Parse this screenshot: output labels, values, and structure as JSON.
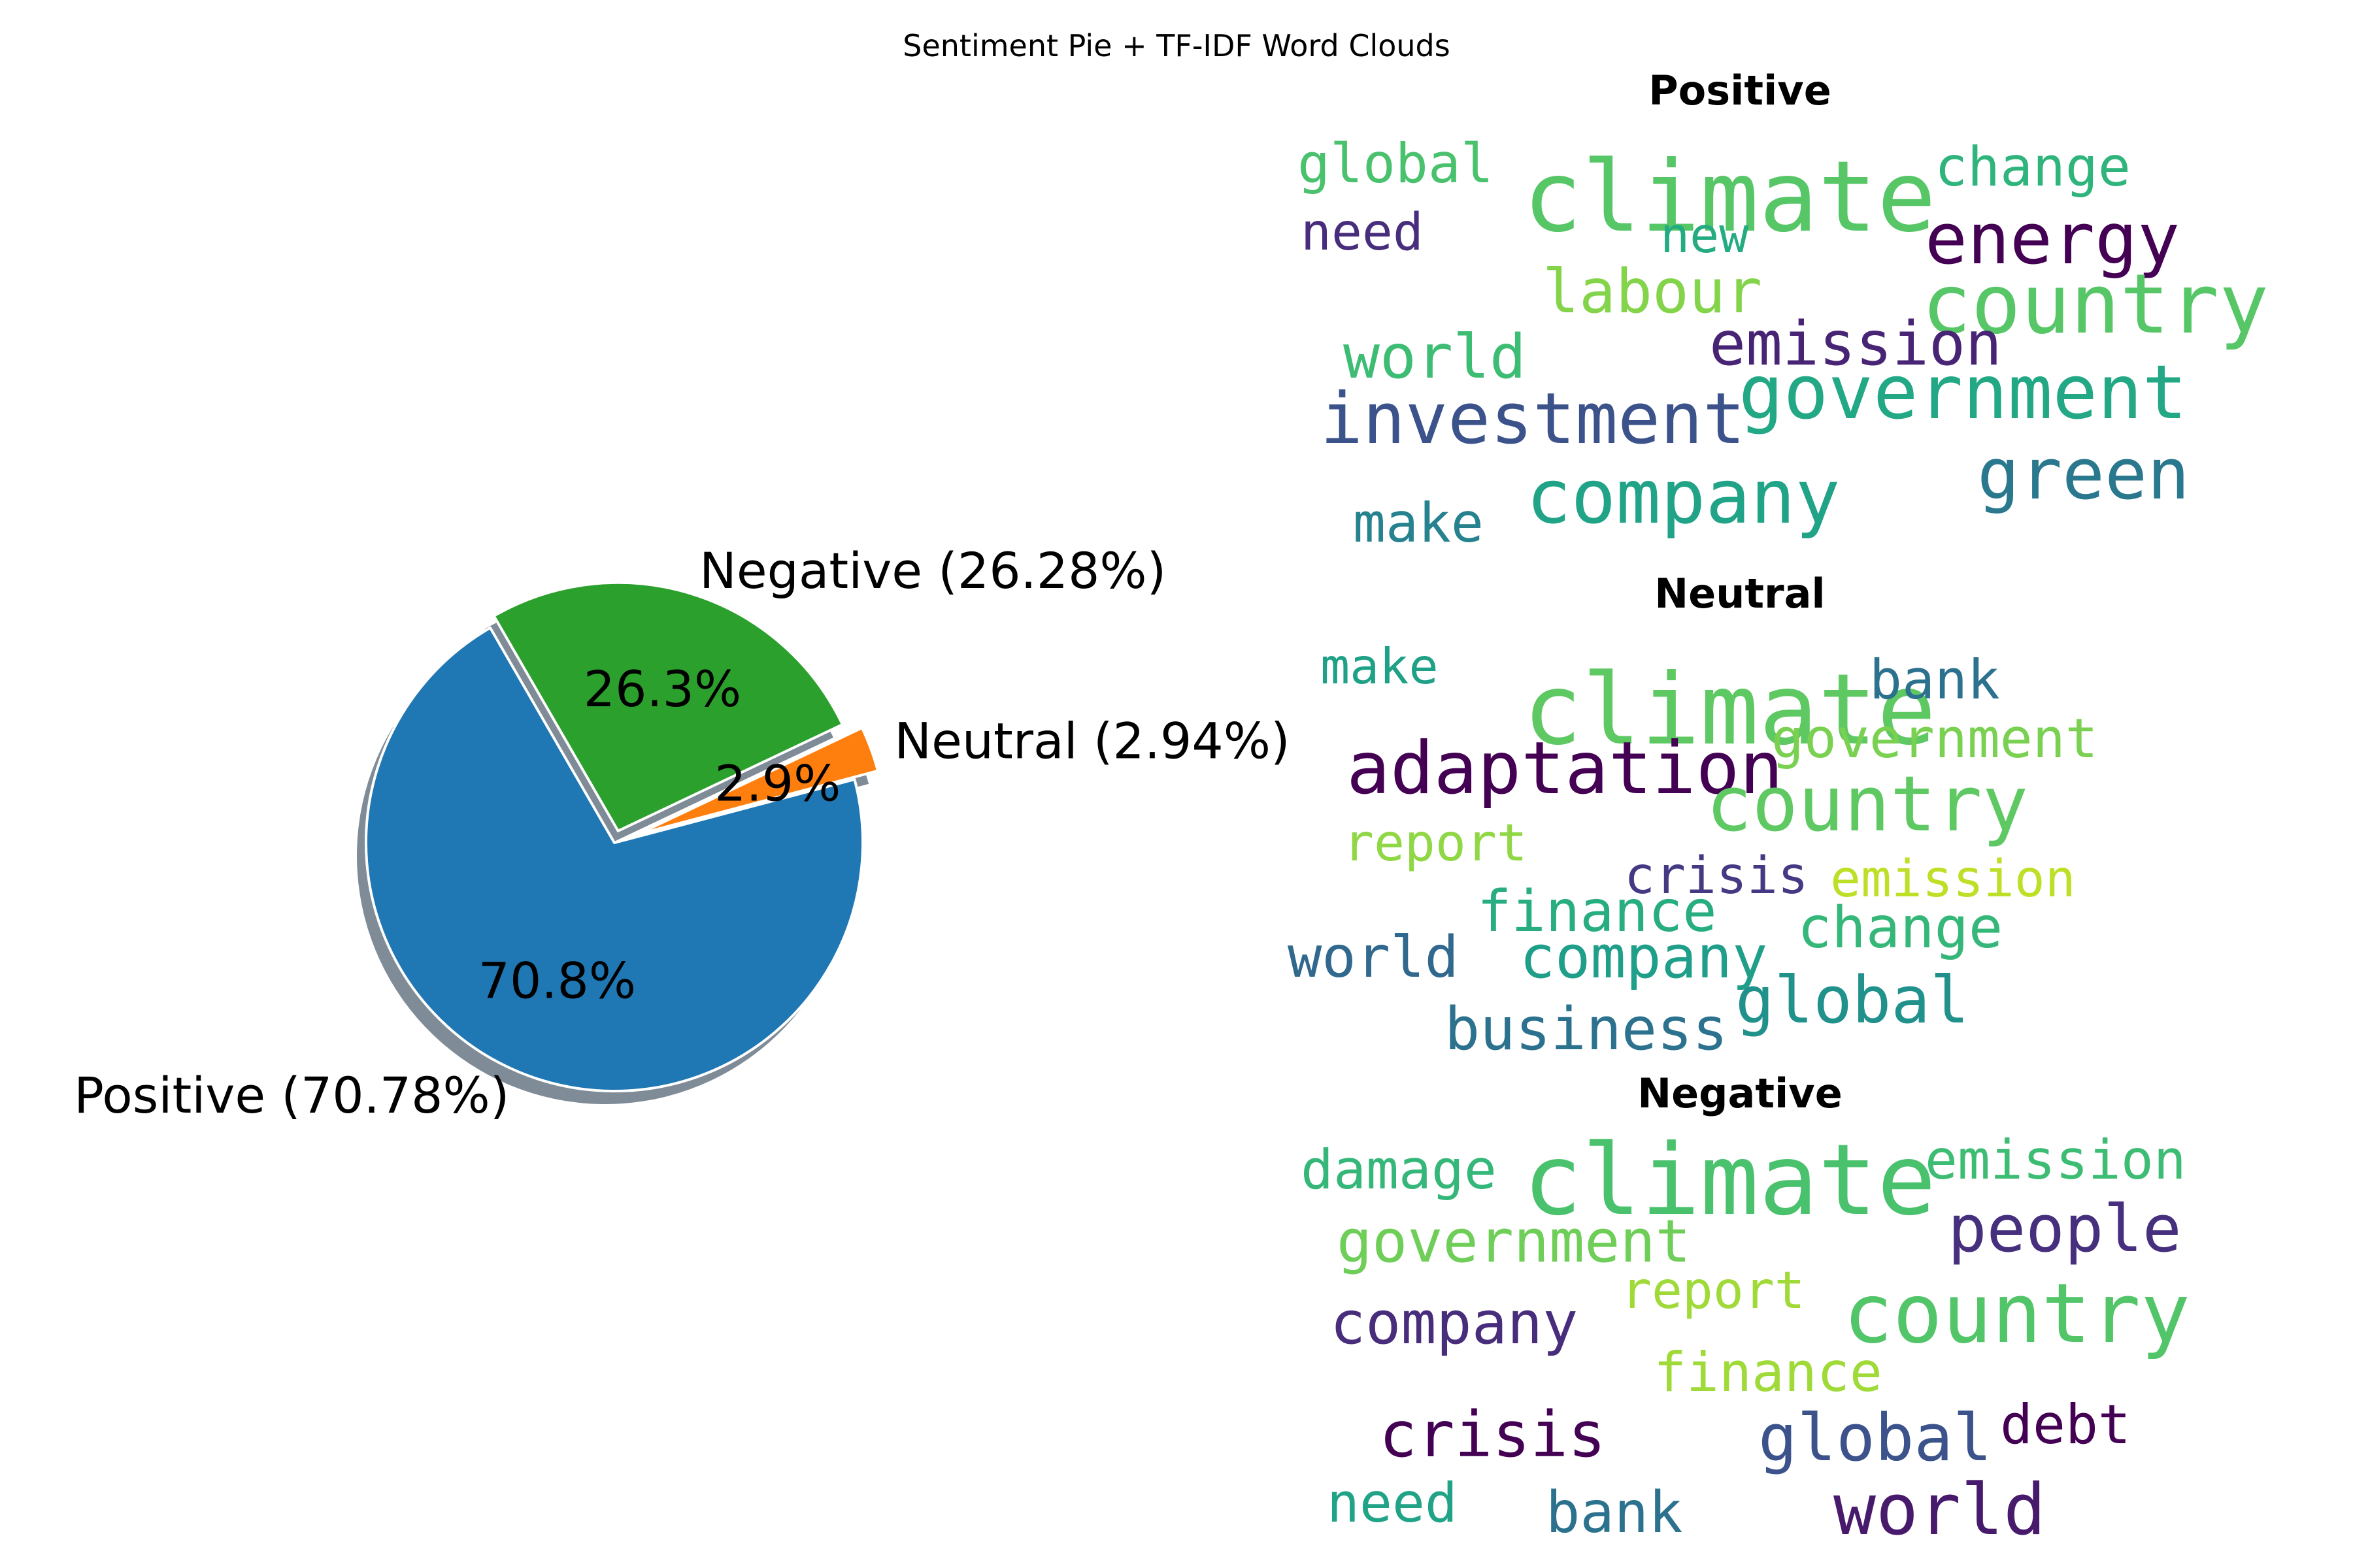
{
  "figure_title": "Sentiment Pie + TF-IDF Word Clouds",
  "chart_data": [
    {
      "type": "pie",
      "title": "",
      "slices": [
        {
          "label": "Positive",
          "value": 70.78,
          "legend_label": "Positive (70.78%)",
          "pct_label": "70.8%",
          "color": "#1f77b4",
          "explode": 0
        },
        {
          "label": "Neutral",
          "value": 2.94,
          "legend_label": "Neutral (2.94%)",
          "pct_label": "2.9%",
          "color": "#ff7f0e",
          "explode": 0.1
        },
        {
          "label": "Negative",
          "value": 26.28,
          "legend_label": "Negative (26.28%)",
          "pct_label": "26.3%",
          "color": "#2ca02c",
          "explode": 0.05
        }
      ],
      "start_angle_deg": 120,
      "direction": "counterclockwise",
      "shadow": true
    },
    {
      "type": "wordcloud",
      "title": "Positive",
      "words": [
        {
          "text": "global",
          "weight": 0.55,
          "color": "#4ac16d"
        },
        {
          "text": "climate",
          "weight": 1.0,
          "color": "#56c667"
        },
        {
          "text": "change",
          "weight": 0.55,
          "color": "#2fb47c"
        },
        {
          "text": "need",
          "weight": 0.52,
          "color": "#472d7b"
        },
        {
          "text": "new",
          "weight": 0.5,
          "color": "#25ab82"
        },
        {
          "text": "energy",
          "weight": 0.72,
          "color": "#440154"
        },
        {
          "text": "labour",
          "weight": 0.62,
          "color": "#84d44b"
        },
        {
          "text": "country",
          "weight": 0.84,
          "color": "#56c667"
        },
        {
          "text": "world",
          "weight": 0.62,
          "color": "#3dbc74"
        },
        {
          "text": "emission",
          "weight": 0.62,
          "color": "#482475"
        },
        {
          "text": "investment",
          "weight": 0.72,
          "color": "#3b528b"
        },
        {
          "text": "government",
          "weight": 0.76,
          "color": "#22a884"
        },
        {
          "text": "company",
          "weight": 0.76,
          "color": "#20a386"
        },
        {
          "text": "green",
          "weight": 0.72,
          "color": "#2a788e"
        },
        {
          "text": "make",
          "weight": 0.55,
          "color": "#26828e"
        }
      ]
    },
    {
      "type": "wordcloud",
      "title": "Neutral",
      "words": [
        {
          "text": "make",
          "weight": 0.5,
          "color": "#1fa187"
        },
        {
          "text": "climate",
          "weight": 1.0,
          "color": "#5ec962"
        },
        {
          "text": "bank",
          "weight": 0.55,
          "color": "#2c728e"
        },
        {
          "text": "government",
          "weight": 0.55,
          "color": "#7ad151"
        },
        {
          "text": "adaptation",
          "weight": 0.74,
          "color": "#440154"
        },
        {
          "text": "country",
          "weight": 0.78,
          "color": "#5ec962"
        },
        {
          "text": "report",
          "weight": 0.52,
          "color": "#8fd744"
        },
        {
          "text": "crisis",
          "weight": 0.52,
          "color": "#443983"
        },
        {
          "text": "emission",
          "weight": 0.52,
          "color": "#bddf26"
        },
        {
          "text": "finance",
          "weight": 0.58,
          "color": "#27ad81"
        },
        {
          "text": "change",
          "weight": 0.58,
          "color": "#35b779"
        },
        {
          "text": "world",
          "weight": 0.58,
          "color": "#31688e"
        },
        {
          "text": "company",
          "weight": 0.6,
          "color": "#1f9e89"
        },
        {
          "text": "global",
          "weight": 0.66,
          "color": "#21918c"
        },
        {
          "text": "business",
          "weight": 0.6,
          "color": "#2c728e"
        }
      ]
    },
    {
      "type": "wordcloud",
      "title": "Negative",
      "words": [
        {
          "text": "damage",
          "weight": 0.55,
          "color": "#35b779"
        },
        {
          "text": "climate",
          "weight": 1.0,
          "color": "#4ac16d"
        },
        {
          "text": "emission",
          "weight": 0.55,
          "color": "#3dbc74"
        },
        {
          "text": "government",
          "weight": 0.6,
          "color": "#6ece58"
        },
        {
          "text": "people",
          "weight": 0.66,
          "color": "#46307e"
        },
        {
          "text": "report",
          "weight": 0.52,
          "color": "#a0da39"
        },
        {
          "text": "company",
          "weight": 0.6,
          "color": "#472d7b"
        },
        {
          "text": "country",
          "weight": 0.84,
          "color": "#52c569"
        },
        {
          "text": "finance",
          "weight": 0.55,
          "color": "#a0da39"
        },
        {
          "text": "crisis",
          "weight": 0.64,
          "color": "#440154"
        },
        {
          "text": "global",
          "weight": 0.66,
          "color": "#3b528b"
        },
        {
          "text": "debt",
          "weight": 0.55,
          "color": "#440154"
        },
        {
          "text": "need",
          "weight": 0.55,
          "color": "#20a386"
        },
        {
          "text": "bank",
          "weight": 0.58,
          "color": "#2c728e"
        },
        {
          "text": "world",
          "weight": 0.72,
          "color": "#481a6c"
        }
      ]
    }
  ]
}
